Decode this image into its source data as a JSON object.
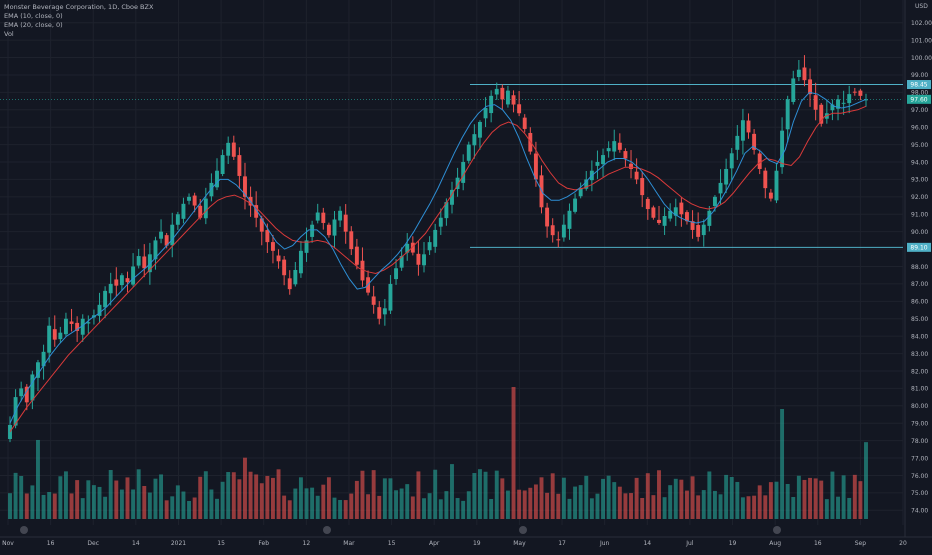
{
  "legend": {
    "title": "Monster Beverage Corporation, 1D, Cboe BZX",
    "ema10": "EMA (10, close, 0)",
    "ema20": "EMA (20, close, 0)",
    "vol": "Vol"
  },
  "price_axis": {
    "currency": "USD",
    "ticks": [
      "102.00",
      "101.00",
      "100.00",
      "99.00",
      "98.00",
      "97.00",
      "96.00",
      "95.00",
      "94.00",
      "93.00",
      "92.00",
      "91.00",
      "90.00",
      "89.00",
      "88.00",
      "87.00",
      "86.00",
      "85.00",
      "84.00",
      "83.00",
      "82.00",
      "81.00",
      "80.00",
      "79.00",
      "78.00",
      "77.00",
      "76.00",
      "75.00",
      "74.00"
    ],
    "markers": [
      {
        "value": 98.45,
        "label": "98.45",
        "color": "#4fb0c6"
      },
      {
        "value": 97.6,
        "label": "97.60",
        "color": "#26a69a"
      },
      {
        "value": 89.1,
        "label": "89.10",
        "color": "#4fb0c6"
      }
    ]
  },
  "time_axis": {
    "labels": [
      "Nov",
      "16",
      "Dec",
      "14",
      "2021",
      "15",
      "Feb",
      "12",
      "Mar",
      "15",
      "Apr",
      "19",
      "May",
      "17",
      "Jun",
      "14",
      "Jul",
      "19",
      "Aug",
      "16",
      "Sep",
      "20"
    ]
  },
  "colors": {
    "up": "#26a69a",
    "down": "#ef5350",
    "ema10": "#2e8fd6",
    "ema20": "#d93a3a",
    "level": "#4fb0c6",
    "bg": "#131722",
    "grid": "#1e222d"
  },
  "levels": [
    {
      "name": "resistance",
      "value": 98.45
    },
    {
      "name": "support",
      "value": 89.1
    }
  ],
  "chart_data": {
    "type": "candlestick",
    "title": "Monster Beverage Corporation, 1D, Cboe BZX",
    "ylim": [
      73.5,
      102.5
    ],
    "series": [
      {
        "name": "EMA (10, close, 0)"
      },
      {
        "name": "EMA (20, close, 0)"
      },
      {
        "name": "Vol"
      }
    ],
    "close": [
      78.9,
      80.5,
      81.0,
      80.2,
      81.8,
      82.5,
      83.1,
      84.6,
      83.8,
      84.2,
      85.0,
      84.7,
      84.3,
      85.0,
      84.8,
      85.2,
      85.8,
      86.6,
      87.0,
      86.9,
      87.5,
      87.1,
      88.0,
      88.6,
      87.9,
      88.7,
      89.5,
      90.0,
      89.2,
      90.4,
      91.0,
      91.6,
      92.0,
      91.5,
      90.8,
      91.9,
      92.8,
      93.5,
      94.4,
      95.1,
      94.3,
      93.2,
      92.0,
      91.5,
      90.8,
      90.0,
      89.4,
      88.9,
      88.3,
      87.5,
      86.7,
      87.8,
      88.9,
      89.5,
      90.4,
      91.1,
      90.5,
      89.8,
      90.7,
      91.2,
      90.0,
      89.0,
      88.1,
      87.2,
      86.5,
      85.8,
      85.0,
      85.6,
      87.0,
      87.9,
      88.6,
      89.3,
      88.8,
      88.1,
      88.7,
      89.4,
      90.1,
      90.8,
      91.7,
      92.4,
      93.1,
      94.0,
      95.0,
      95.6,
      96.3,
      97.1,
      97.8,
      98.2,
      97.6,
      98.1,
      97.3,
      96.8,
      95.9,
      94.6,
      93.0,
      91.4,
      90.3,
      89.8,
      89.5,
      90.4,
      91.2,
      91.9,
      92.5,
      93.0,
      93.5,
      94.0,
      94.4,
      94.8,
      95.2,
      94.7,
      94.2,
      93.6,
      93.0,
      92.1,
      91.3,
      90.8,
      90.5,
      90.9,
      91.2,
      91.4,
      91.0,
      90.6,
      90.1,
      89.7,
      90.4,
      91.2,
      92.0,
      92.8,
      93.6,
      94.5,
      95.5,
      96.4,
      95.7,
      94.7,
      93.6,
      92.5,
      91.9,
      93.5,
      95.8,
      97.6,
      98.8,
      99.3,
      98.7,
      97.9,
      97.0,
      96.2,
      96.8,
      97.3,
      97.6,
      97.4,
      97.9,
      98.0,
      97.8,
      97.6
    ],
    "ema10_close": [
      79.0,
      80.0,
      80.8,
      81.5,
      82.2,
      82.9,
      83.5,
      84.0,
      84.3,
      84.6,
      85.0,
      85.3,
      85.7,
      86.2,
      86.7,
      87.2,
      87.6,
      88.0,
      88.5,
      89.0,
      89.5,
      90.1,
      90.7,
      91.3,
      91.9,
      92.5,
      93.0,
      93.0,
      92.7,
      92.2,
      91.6,
      90.9,
      90.1,
      89.4,
      89.0,
      89.2,
      89.7,
      90.1,
      90.1,
      89.7,
      89.0,
      88.1,
      87.3,
      86.7,
      86.8,
      87.3,
      87.8,
      88.2,
      88.7,
      89.3,
      90.0,
      90.8,
      91.6,
      92.5,
      93.5,
      94.5,
      95.4,
      96.2,
      96.8,
      97.2,
      97.3,
      97.0,
      96.4,
      95.4,
      94.2,
      93.1,
      92.2,
      91.8,
      91.8,
      92.0,
      92.3,
      92.7,
      93.2,
      93.6,
      94.0,
      94.2,
      94.2,
      94.0,
      93.6,
      93.0,
      92.3,
      91.6,
      91.1,
      90.8,
      90.6,
      90.5,
      90.6,
      91.1,
      91.8,
      92.6,
      93.5,
      94.5,
      94.9,
      94.6,
      94.1,
      93.9,
      94.7,
      96.3,
      97.5,
      98.0,
      97.9,
      97.6,
      97.2,
      97.1,
      97.2,
      97.4,
      97.6
    ],
    "ema20_close": [
      78.5,
      79.2,
      79.9,
      80.5,
      81.1,
      81.7,
      82.3,
      82.9,
      83.4,
      83.9,
      84.4,
      84.9,
      85.4,
      85.9,
      86.4,
      86.9,
      87.4,
      87.9,
      88.4,
      88.9,
      89.4,
      89.9,
      90.4,
      90.9,
      91.4,
      91.8,
      92.0,
      92.1,
      91.9,
      91.6,
      91.2,
      90.7,
      90.2,
      89.8,
      89.5,
      89.4,
      89.4,
      89.5,
      89.4,
      89.1,
      88.7,
      88.3,
      87.9,
      87.7,
      87.6,
      87.8,
      88.1,
      88.5,
      88.9,
      89.4,
      89.9,
      90.6,
      91.3,
      92.0,
      92.8,
      93.6,
      94.4,
      95.1,
      95.7,
      96.1,
      96.3,
      96.1,
      95.6,
      94.9,
      94.1,
      93.4,
      92.8,
      92.5,
      92.4,
      92.5,
      92.7,
      93.0,
      93.3,
      93.5,
      93.7,
      93.7,
      93.6,
      93.4,
      93.1,
      92.7,
      92.3,
      91.9,
      91.6,
      91.4,
      91.3,
      91.4,
      91.7,
      92.2,
      92.8,
      93.4,
      93.9,
      94.2,
      94.1,
      93.9,
      93.8,
      94.3,
      95.2,
      96.0,
      96.6,
      96.8,
      96.8,
      96.9,
      97.0,
      97.2
    ]
  }
}
